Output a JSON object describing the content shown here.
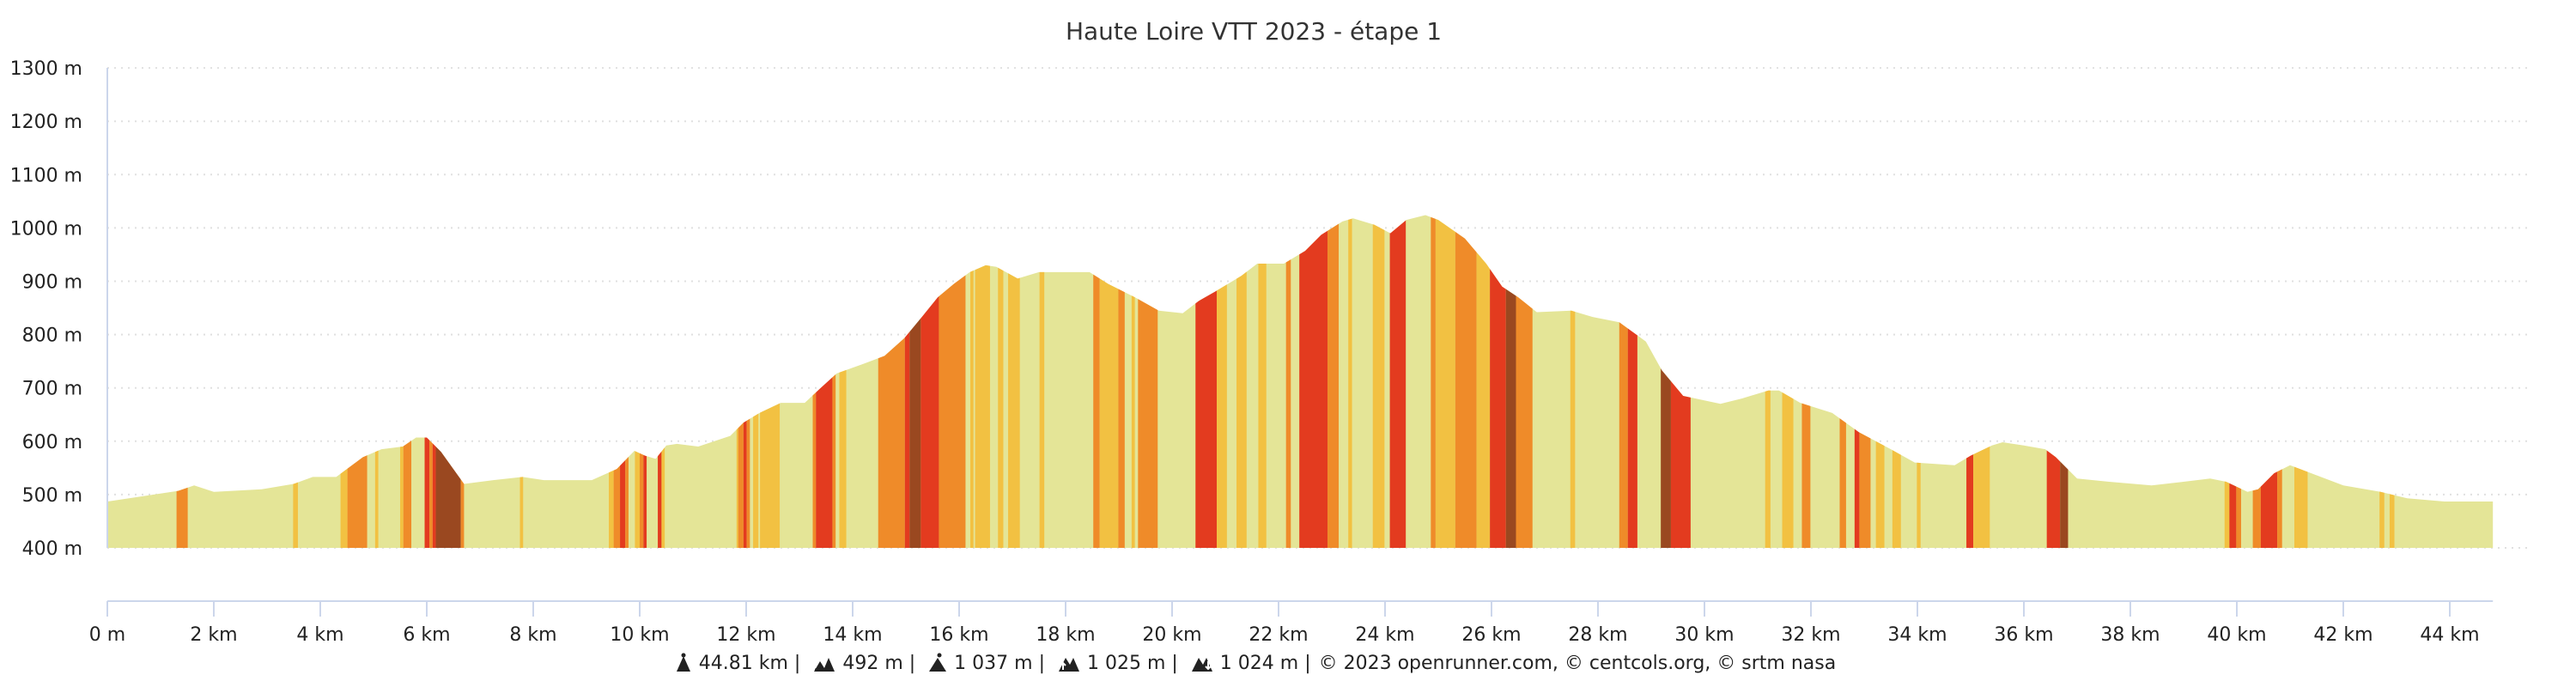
{
  "chart_data": {
    "type": "area",
    "title": "Haute Loire VTT 2023 - étape 1",
    "xlim": [
      0,
      44.81
    ],
    "ylim": [
      400,
      1300
    ],
    "grid": true,
    "y_ticks": [
      {
        "value": 400,
        "label": "400 m"
      },
      {
        "value": 500,
        "label": "500 m"
      },
      {
        "value": 600,
        "label": "600 m"
      },
      {
        "value": 700,
        "label": "700 m"
      },
      {
        "value": 800,
        "label": "800 m"
      },
      {
        "value": 900,
        "label": "900 m"
      },
      {
        "value": 1000,
        "label": "1000 m"
      },
      {
        "value": 1100,
        "label": "1100 m"
      },
      {
        "value": 1200,
        "label": "1200 m"
      },
      {
        "value": 1300,
        "label": "1300 m"
      }
    ],
    "x_ticks": [
      {
        "value": 0,
        "label": "0 m"
      },
      {
        "value": 2,
        "label": "2 km"
      },
      {
        "value": 4,
        "label": "4 km"
      },
      {
        "value": 6,
        "label": "6 km"
      },
      {
        "value": 8,
        "label": "8 km"
      },
      {
        "value": 10,
        "label": "10 km"
      },
      {
        "value": 12,
        "label": "12 km"
      },
      {
        "value": 14,
        "label": "14 km"
      },
      {
        "value": 16,
        "label": "16 km"
      },
      {
        "value": 18,
        "label": "18 km"
      },
      {
        "value": 20,
        "label": "20 km"
      },
      {
        "value": 22,
        "label": "22 km"
      },
      {
        "value": 24,
        "label": "24 km"
      },
      {
        "value": 26,
        "label": "26 km"
      },
      {
        "value": 28,
        "label": "28 km"
      },
      {
        "value": 30,
        "label": "30 km"
      },
      {
        "value": 32,
        "label": "32 km"
      },
      {
        "value": 34,
        "label": "34 km"
      },
      {
        "value": 36,
        "label": "36 km"
      },
      {
        "value": 38,
        "label": "38 km"
      },
      {
        "value": 40,
        "label": "40 km"
      },
      {
        "value": 42,
        "label": "42 km"
      },
      {
        "value": 44,
        "label": "44 km"
      }
    ],
    "profile_km_elev": [
      [
        0,
        487
      ],
      [
        1.33,
        507
      ],
      [
        1.63,
        517
      ],
      [
        2.0,
        505
      ],
      [
        2.9,
        510
      ],
      [
        3.5,
        520
      ],
      [
        3.86,
        533
      ],
      [
        4.3,
        533
      ],
      [
        4.8,
        570
      ],
      [
        5.15,
        585
      ],
      [
        5.55,
        590
      ],
      [
        5.8,
        607
      ],
      [
        6.0,
        607
      ],
      [
        6.27,
        580
      ],
      [
        6.7,
        520
      ],
      [
        7.25,
        527
      ],
      [
        7.8,
        533
      ],
      [
        8.2,
        527
      ],
      [
        9.1,
        527
      ],
      [
        9.57,
        548
      ],
      [
        9.9,
        582
      ],
      [
        10.1,
        573
      ],
      [
        10.3,
        567
      ],
      [
        10.5,
        592
      ],
      [
        10.7,
        595
      ],
      [
        11.1,
        590
      ],
      [
        11.7,
        610
      ],
      [
        11.95,
        635
      ],
      [
        12.25,
        653
      ],
      [
        12.65,
        672
      ],
      [
        13.1,
        672
      ],
      [
        13.4,
        700
      ],
      [
        13.7,
        727
      ],
      [
        14.2,
        745
      ],
      [
        14.6,
        760
      ],
      [
        14.97,
        793
      ],
      [
        15.3,
        833
      ],
      [
        15.6,
        870
      ],
      [
        15.9,
        895
      ],
      [
        16.2,
        917
      ],
      [
        16.5,
        930
      ],
      [
        16.7,
        927
      ],
      [
        17.1,
        905
      ],
      [
        17.5,
        917
      ],
      [
        18.05,
        917
      ],
      [
        18.45,
        917
      ],
      [
        18.8,
        895
      ],
      [
        19.3,
        870
      ],
      [
        19.75,
        845
      ],
      [
        20.2,
        840
      ],
      [
        20.5,
        863
      ],
      [
        20.8,
        880
      ],
      [
        21.3,
        910
      ],
      [
        21.6,
        933
      ],
      [
        22.1,
        933
      ],
      [
        22.5,
        957
      ],
      [
        22.8,
        987
      ],
      [
        23.2,
        1012
      ],
      [
        23.4,
        1018
      ],
      [
        23.8,
        1006
      ],
      [
        24.1,
        990
      ],
      [
        24.4,
        1015
      ],
      [
        24.76,
        1024
      ],
      [
        25.0,
        1015
      ],
      [
        25.5,
        980
      ],
      [
        25.9,
        933
      ],
      [
        26.2,
        890
      ],
      [
        26.5,
        870
      ],
      [
        26.85,
        842
      ],
      [
        27.5,
        845
      ],
      [
        27.9,
        833
      ],
      [
        28.4,
        823
      ],
      [
        28.9,
        787
      ],
      [
        29.2,
        733
      ],
      [
        29.6,
        685
      ],
      [
        30.3,
        670
      ],
      [
        30.7,
        680
      ],
      [
        31.2,
        695
      ],
      [
        31.4,
        695
      ],
      [
        31.8,
        672
      ],
      [
        32.4,
        653
      ],
      [
        32.9,
        617
      ],
      [
        33.5,
        585
      ],
      [
        33.95,
        560
      ],
      [
        34.7,
        555
      ],
      [
        35.0,
        573
      ],
      [
        35.4,
        592
      ],
      [
        35.6,
        598
      ],
      [
        36.0,
        592
      ],
      [
        36.4,
        585
      ],
      [
        36.6,
        570
      ],
      [
        37.0,
        530
      ],
      [
        37.6,
        524
      ],
      [
        38.4,
        517
      ],
      [
        39.0,
        524
      ],
      [
        39.5,
        530
      ],
      [
        39.8,
        524
      ],
      [
        40.2,
        505
      ],
      [
        40.4,
        510
      ],
      [
        40.7,
        540
      ],
      [
        41.0,
        555
      ],
      [
        41.5,
        536
      ],
      [
        42.0,
        517
      ],
      [
        42.7,
        505
      ],
      [
        43.2,
        493
      ],
      [
        43.9,
        487
      ],
      [
        44.81,
        487
      ]
    ],
    "slope_colors": [
      "#e4e597",
      "#f2c142",
      "#ef8b29",
      "#e33b1f",
      "#9a4820"
    ],
    "slope_segments_km": [
      [
        1.3,
        1.51,
        2
      ],
      [
        3.49,
        3.58,
        1
      ],
      [
        4.38,
        4.51,
        1
      ],
      [
        4.51,
        4.88,
        2
      ],
      [
        5.03,
        5.09,
        1
      ],
      [
        5.5,
        5.56,
        1
      ],
      [
        5.56,
        5.71,
        2
      ],
      [
        5.96,
        6.05,
        3
      ],
      [
        6.05,
        6.11,
        2
      ],
      [
        6.11,
        6.17,
        3
      ],
      [
        6.17,
        6.64,
        4
      ],
      [
        6.64,
        6.7,
        2
      ],
      [
        7.75,
        7.81,
        1
      ],
      [
        9.42,
        9.51,
        1
      ],
      [
        9.51,
        9.63,
        2
      ],
      [
        9.63,
        9.73,
        3
      ],
      [
        9.73,
        9.79,
        2
      ],
      [
        9.91,
        10.0,
        1
      ],
      [
        10.0,
        10.07,
        2
      ],
      [
        10.07,
        10.13,
        3
      ],
      [
        10.34,
        10.41,
        3
      ],
      [
        10.41,
        10.47,
        1
      ],
      [
        11.82,
        11.85,
        1
      ],
      [
        11.85,
        11.95,
        2
      ],
      [
        11.95,
        12.01,
        3
      ],
      [
        12.01,
        12.07,
        2
      ],
      [
        12.13,
        12.23,
        1
      ],
      [
        12.26,
        12.63,
        1
      ],
      [
        13.25,
        13.31,
        2
      ],
      [
        13.31,
        13.62,
        3
      ],
      [
        13.62,
        13.68,
        2
      ],
      [
        13.75,
        13.88,
        1
      ],
      [
        14.48,
        14.98,
        2
      ],
      [
        14.98,
        15.07,
        3
      ],
      [
        15.07,
        15.28,
        4
      ],
      [
        15.28,
        15.62,
        3
      ],
      [
        15.62,
        16.12,
        2
      ],
      [
        16.21,
        16.27,
        1
      ],
      [
        16.3,
        16.58,
        1
      ],
      [
        16.73,
        16.83,
        1
      ],
      [
        16.92,
        17.14,
        1
      ],
      [
        17.51,
        17.6,
        1
      ],
      [
        18.52,
        18.64,
        2
      ],
      [
        18.64,
        18.99,
        1
      ],
      [
        18.99,
        19.11,
        2
      ],
      [
        19.24,
        19.3,
        1
      ],
      [
        19.36,
        19.73,
        2
      ],
      [
        20.44,
        20.84,
        3
      ],
      [
        20.84,
        21.03,
        1
      ],
      [
        21.21,
        21.4,
        1
      ],
      [
        21.62,
        21.77,
        1
      ],
      [
        22.14,
        22.23,
        2
      ],
      [
        22.39,
        22.92,
        3
      ],
      [
        22.92,
        23.13,
        2
      ],
      [
        23.31,
        23.38,
        1
      ],
      [
        23.77,
        23.99,
        1
      ],
      [
        24.09,
        24.39,
        3
      ],
      [
        24.86,
        24.95,
        2
      ],
      [
        24.95,
        25.32,
        1
      ],
      [
        25.32,
        25.72,
        2
      ],
      [
        25.72,
        25.97,
        1
      ],
      [
        25.97,
        26.27,
        3
      ],
      [
        26.27,
        26.46,
        4
      ],
      [
        26.46,
        26.77,
        2
      ],
      [
        27.48,
        27.57,
        1
      ],
      [
        28.4,
        28.56,
        2
      ],
      [
        28.56,
        28.74,
        3
      ],
      [
        29.18,
        29.37,
        4
      ],
      [
        29.37,
        29.74,
        3
      ],
      [
        31.14,
        31.24,
        1
      ],
      [
        31.46,
        31.67,
        1
      ],
      [
        31.83,
        31.99,
        2
      ],
      [
        32.54,
        32.66,
        2
      ],
      [
        32.82,
        32.91,
        3
      ],
      [
        32.91,
        33.12,
        2
      ],
      [
        33.22,
        33.38,
        1
      ],
      [
        33.53,
        33.69,
        1
      ],
      [
        33.99,
        34.06,
        1
      ],
      [
        34.92,
        35.05,
        3
      ],
      [
        35.05,
        35.36,
        1
      ],
      [
        36.43,
        36.68,
        3
      ],
      [
        36.68,
        36.83,
        4
      ],
      [
        39.77,
        39.86,
        1
      ],
      [
        39.86,
        39.99,
        3
      ],
      [
        39.99,
        40.08,
        2
      ],
      [
        40.3,
        40.45,
        2
      ],
      [
        40.45,
        40.76,
        3
      ],
      [
        40.76,
        40.85,
        2
      ],
      [
        41.08,
        41.33,
        1
      ],
      [
        42.68,
        42.77,
        1
      ],
      [
        42.87,
        42.96,
        1
      ]
    ]
  },
  "footer": {
    "distance": "44.81 km |",
    "min_elevation": "492 m |",
    "max_elevation": "1 037 m |",
    "ascent": "1 025 m |",
    "descent": "1 024 m |",
    "credits": "© 2023 openrunner.com, © centcols.org, © srtm nasa"
  }
}
